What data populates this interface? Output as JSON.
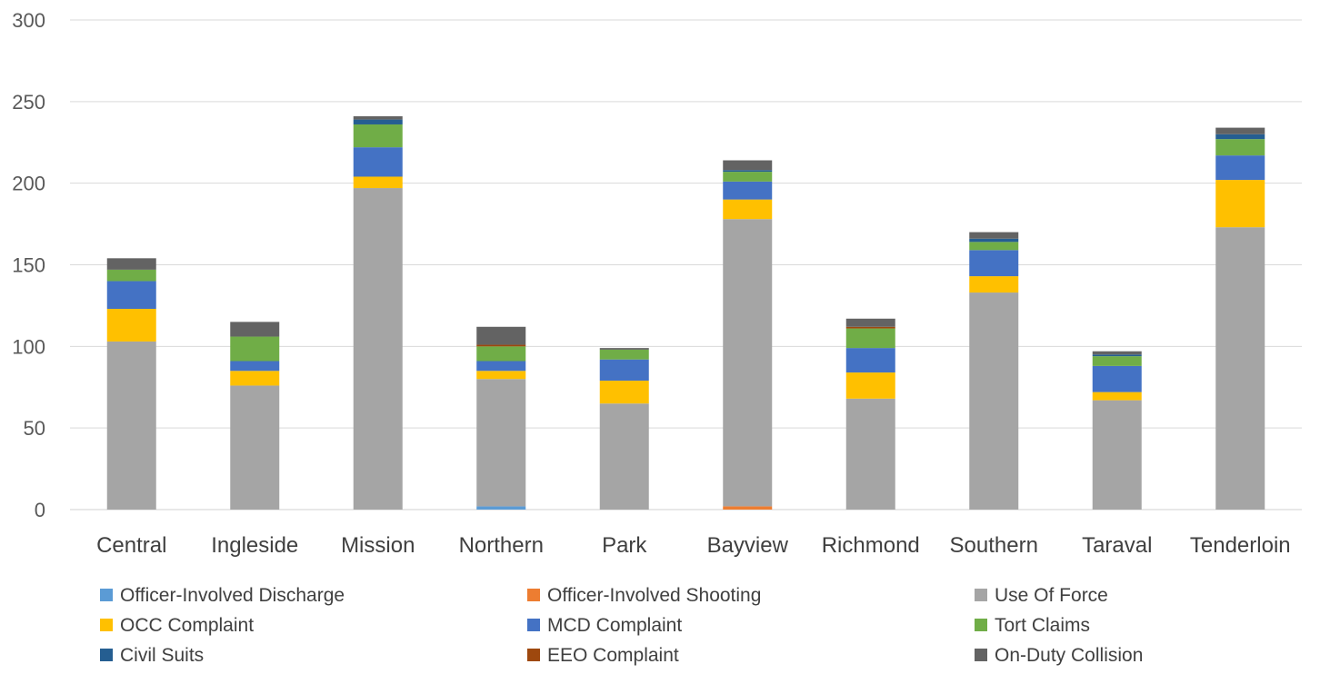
{
  "chart_data": {
    "type": "bar",
    "stacked": true,
    "title": "",
    "xlabel": "",
    "ylabel": "",
    "ylim": [
      0,
      300
    ],
    "yticks": [
      0,
      50,
      100,
      150,
      200,
      250,
      300
    ],
    "grid": true,
    "legend_position": "bottom",
    "categories": [
      "Central",
      "Ingleside",
      "Mission",
      "Northern",
      "Park",
      "Bayview",
      "Richmond",
      "Southern",
      "Taraval",
      "Tenderloin"
    ],
    "series": [
      {
        "name": "Officer-Involved Discharge",
        "color": "#5B9BD5",
        "values": [
          0,
          0,
          0,
          2,
          0,
          0,
          0,
          0,
          0,
          0
        ]
      },
      {
        "name": "Officer-Involved Shooting",
        "color": "#ED7D31",
        "values": [
          0,
          0,
          0,
          0,
          0,
          2,
          0,
          0,
          0,
          0
        ]
      },
      {
        "name": "Use Of Force",
        "color": "#A5A5A5",
        "values": [
          103,
          76,
          197,
          78,
          65,
          176,
          68,
          133,
          67,
          173
        ]
      },
      {
        "name": "OCC Complaint",
        "color": "#FFC000",
        "values": [
          20,
          9,
          7,
          5,
          14,
          12,
          16,
          10,
          5,
          29
        ]
      },
      {
        "name": "MCD Complaint",
        "color": "#4472C4",
        "values": [
          17,
          6,
          18,
          6,
          13,
          11,
          15,
          16,
          16,
          15
        ]
      },
      {
        "name": "Tort Claims",
        "color": "#70AD47",
        "values": [
          7,
          15,
          14,
          9,
          6,
          6,
          12,
          5,
          6,
          10
        ]
      },
      {
        "name": "Civil Suits",
        "color": "#255E91",
        "values": [
          0,
          0,
          3,
          0,
          0,
          1,
          0,
          2,
          1,
          3
        ]
      },
      {
        "name": "EEO Complaint",
        "color": "#9E480E",
        "values": [
          0,
          0,
          0,
          1,
          0,
          0,
          1,
          0,
          0,
          0
        ]
      },
      {
        "name": "On-Duty Collision",
        "color": "#636363",
        "values": [
          7,
          9,
          2,
          11,
          1,
          6,
          5,
          4,
          2,
          4
        ]
      }
    ]
  }
}
